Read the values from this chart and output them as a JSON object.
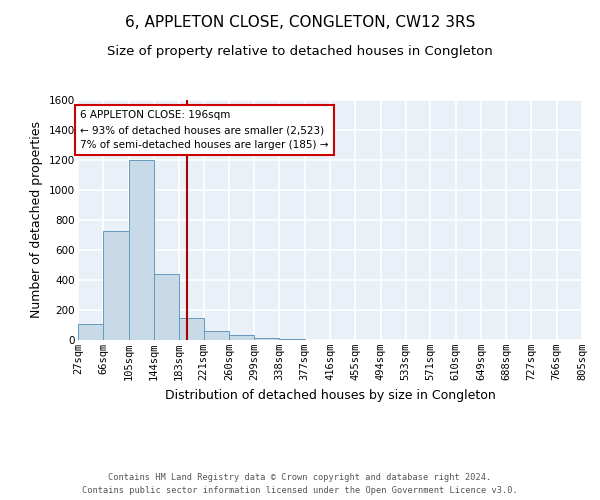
{
  "title": "6, APPLETON CLOSE, CONGLETON, CW12 3RS",
  "subtitle": "Size of property relative to detached houses in Congleton",
  "xlabel": "Distribution of detached houses by size in Congleton",
  "ylabel": "Number of detached properties",
  "bin_edges": [
    27,
    66,
    105,
    144,
    183,
    221,
    260,
    299,
    338,
    377,
    416,
    455,
    494,
    533,
    571,
    610,
    649,
    688,
    727,
    766,
    805
  ],
  "bar_heights": [
    110,
    730,
    1200,
    440,
    150,
    60,
    35,
    15,
    10,
    0,
    0,
    0,
    0,
    0,
    0,
    0,
    0,
    0,
    0,
    0
  ],
  "bar_color": "#c8d9e8",
  "bar_edgecolor": "#6699bb",
  "background_color": "#eaf0f8",
  "grid_color": "#ffffff",
  "vline_x": 196,
  "vline_color": "#aa0000",
  "annotation_line1": "6 APPLETON CLOSE: 196sqm",
  "annotation_line2": "← 93% of detached houses are smaller (2,523)",
  "annotation_line3": "7% of semi-detached houses are larger (185) →",
  "annotation_box_edgecolor": "#cc0000",
  "annotation_box_facecolor": "#ffffff",
  "ylim": [
    0,
    1600
  ],
  "yticks": [
    0,
    200,
    400,
    600,
    800,
    1000,
    1200,
    1400,
    1600
  ],
  "footer_line1": "Contains HM Land Registry data © Crown copyright and database right 2024.",
  "footer_line2": "Contains public sector information licensed under the Open Government Licence v3.0.",
  "title_fontsize": 11,
  "subtitle_fontsize": 9.5,
  "tick_fontsize": 7.5,
  "ylabel_fontsize": 9,
  "xlabel_fontsize": 9,
  "annotation_fontsize": 7.5,
  "footer_fontsize": 6.2
}
